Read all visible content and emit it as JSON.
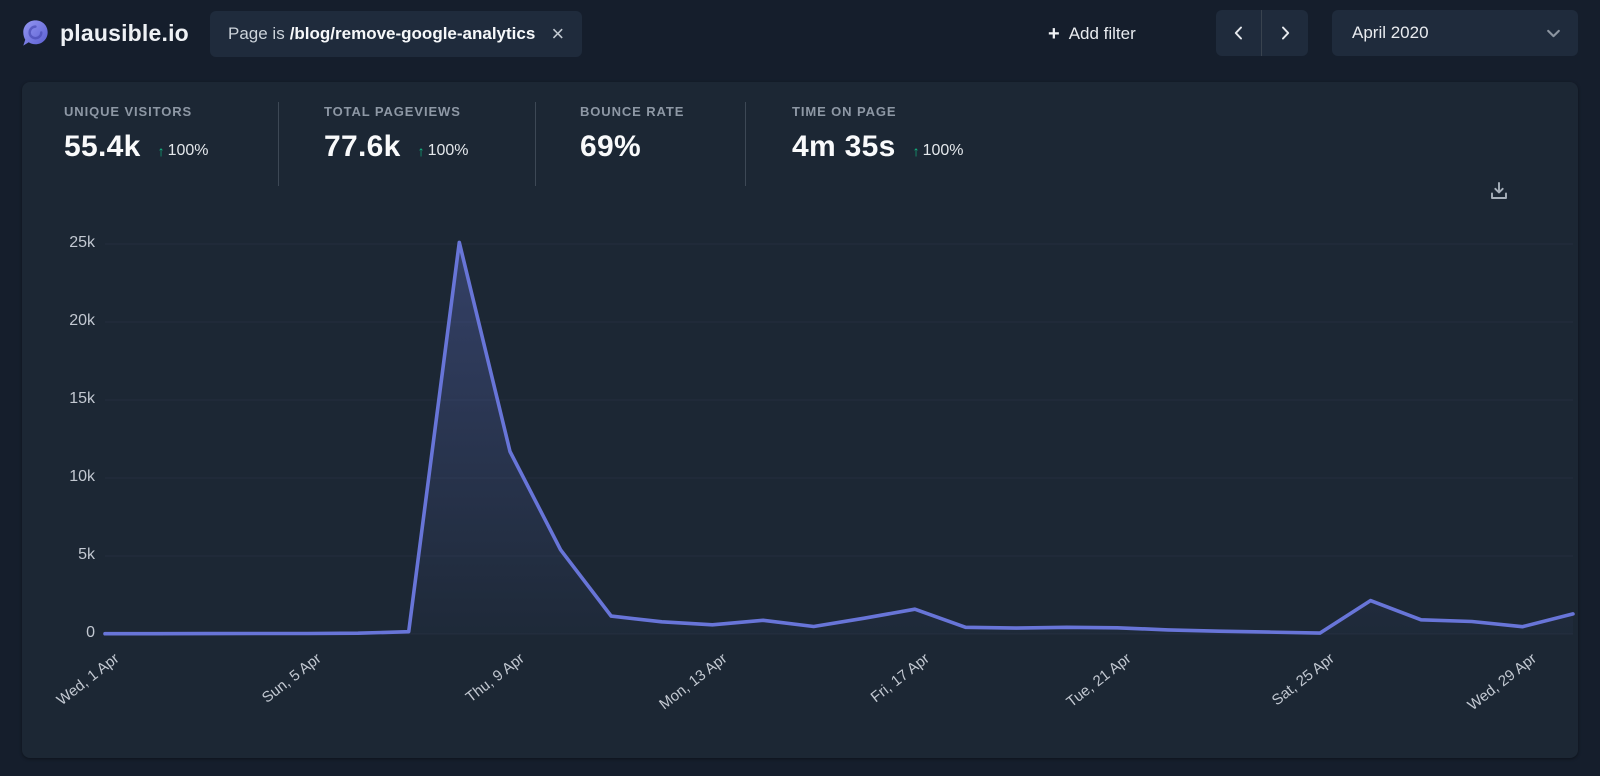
{
  "colors": {
    "brand_purple": "#6e71d9",
    "chart_line": "#6875d8",
    "chart_fill": "#6574cd",
    "positive_green": "#10b981",
    "card_bg": "#1c2734",
    "page_bg": "#151e2c"
  },
  "header": {
    "brand": "plausible.io",
    "filter_chip": {
      "prefix": "Page is",
      "value": "/blog/remove-google-analytics",
      "close_icon": "×"
    },
    "add_filter": {
      "plus_icon": "+",
      "label": "Add filter"
    },
    "date_picker": {
      "label": "April 2020"
    }
  },
  "stats": [
    {
      "label": "UNIQUE VISITORS",
      "value": "55.4k",
      "arrow": "↑",
      "change": "100%"
    },
    {
      "label": "TOTAL PAGEVIEWS",
      "value": "77.6k",
      "arrow": "↑",
      "change": "100%"
    },
    {
      "label": "BOUNCE RATE",
      "value": "69%"
    },
    {
      "label": "TIME ON PAGE",
      "value": "4m 35s",
      "arrow": "↑",
      "change": "100%"
    }
  ],
  "chart_data": {
    "type": "area",
    "series_name": "Visitors",
    "month": "April 2020",
    "days": [
      1,
      2,
      3,
      4,
      5,
      6,
      7,
      8,
      9,
      10,
      11,
      12,
      13,
      14,
      15,
      16,
      17,
      18,
      19,
      20,
      21,
      22,
      23,
      24,
      25,
      26,
      27,
      28,
      29,
      30
    ],
    "values": [
      20,
      20,
      25,
      30,
      35,
      50,
      150,
      25100,
      11700,
      5400,
      1150,
      780,
      590,
      880,
      480,
      1010,
      1590,
      430,
      380,
      430,
      400,
      260,
      180,
      120,
      60,
      2140,
      910,
      800,
      470,
      1290
    ],
    "ylim": [
      0,
      25000
    ],
    "grid": "horizontal-faint",
    "y_ticks": [
      {
        "value": 0,
        "label": "0"
      },
      {
        "value": 5000,
        "label": "5k"
      },
      {
        "value": 10000,
        "label": "10k"
      },
      {
        "value": 15000,
        "label": "15k"
      },
      {
        "value": 20000,
        "label": "20k"
      },
      {
        "value": 25000,
        "label": "25k"
      }
    ],
    "x_ticks": [
      {
        "day": 1,
        "label": "Wed, 1 Apr"
      },
      {
        "day": 5,
        "label": "Sun, 5 Apr"
      },
      {
        "day": 9,
        "label": "Thu, 9 Apr"
      },
      {
        "day": 13,
        "label": "Mon, 13 Apr"
      },
      {
        "day": 17,
        "label": "Fri, 17 Apr"
      },
      {
        "day": 21,
        "label": "Tue, 21 Apr"
      },
      {
        "day": 25,
        "label": "Sat, 25 Apr"
      },
      {
        "day": 29,
        "label": "Wed, 29 Apr"
      }
    ]
  }
}
